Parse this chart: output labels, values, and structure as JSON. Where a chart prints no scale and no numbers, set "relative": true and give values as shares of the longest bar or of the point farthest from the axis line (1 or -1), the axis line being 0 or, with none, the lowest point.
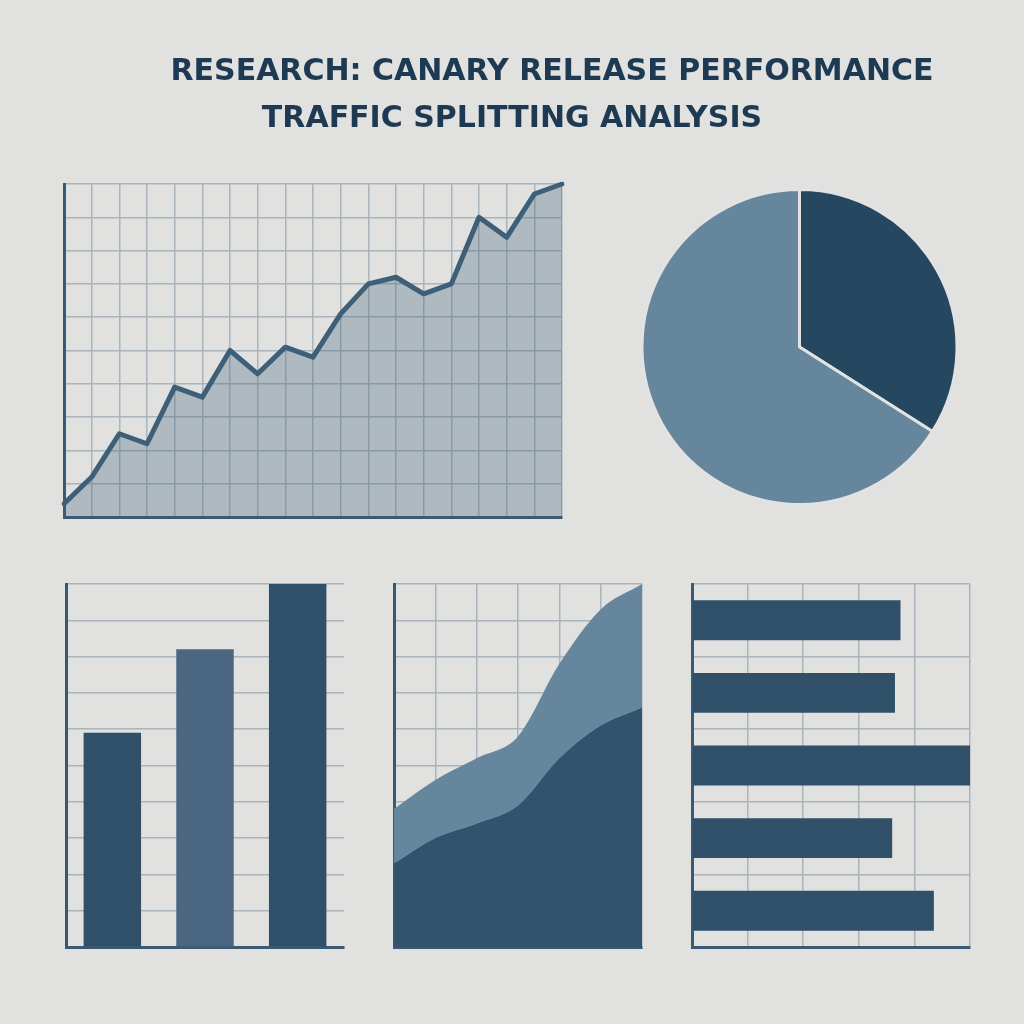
{
  "chart_data": [
    {
      "type": "area",
      "title": "RESEARCH: CANARY RELEASE PERFORMANCE",
      "subtitle": "TRAFFIC SPLITTING ANALYSIS",
      "relative": true,
      "grid": true,
      "categories": [
        null,
        null,
        null,
        null,
        null,
        null,
        null,
        null,
        null,
        null,
        null,
        null,
        null,
        null,
        null,
        null,
        null,
        null,
        null
      ],
      "series": [
        {
          "color": "#3d5f78",
          "values": [
            0.04,
            0.12,
            0.25,
            0.22,
            0.39,
            0.36,
            0.5,
            0.43,
            0.51,
            0.48,
            0.61,
            0.7,
            0.72,
            0.67,
            0.7,
            0.9,
            0.84,
            0.97,
            1
          ]
        }
      ]
    },
    {
      "type": "pie",
      "categories": [
        null,
        null
      ],
      "values": [
        34,
        66
      ],
      "colors": [
        "#25475f",
        "#66869e"
      ]
    },
    {
      "type": "bar",
      "relative": true,
      "grid": "y",
      "categories": [
        null,
        null,
        null
      ],
      "values": [
        0.59,
        0.82,
        1
      ],
      "colors": [
        "#2f5068",
        "#4a6680",
        "#2f5068"
      ]
    },
    {
      "type": "area",
      "relative": true,
      "stacked": true,
      "grid": true,
      "categories": [
        null,
        null,
        null,
        null,
        null,
        null,
        null
      ],
      "series": [
        {
          "color": "#31536e",
          "values": [
            0.23,
            0.3,
            0.34,
            0.39,
            0.52,
            0.61,
            0.66
          ]
        },
        {
          "color": "#66869e",
          "values": [
            0.15,
            0.16,
            0.18,
            0.19,
            0.26,
            0.32,
            0.34
          ]
        }
      ]
    },
    {
      "type": "bar",
      "orientation": "horizontal",
      "relative": true,
      "grid": true,
      "categories": [
        null,
        null,
        null,
        null,
        null
      ],
      "values": [
        0.75,
        0.73,
        1,
        0.72,
        0.87
      ],
      "colors": [
        "#2f5068",
        "#2f5068",
        "#2f5068",
        "#2f5068",
        "#2f5068"
      ]
    }
  ]
}
